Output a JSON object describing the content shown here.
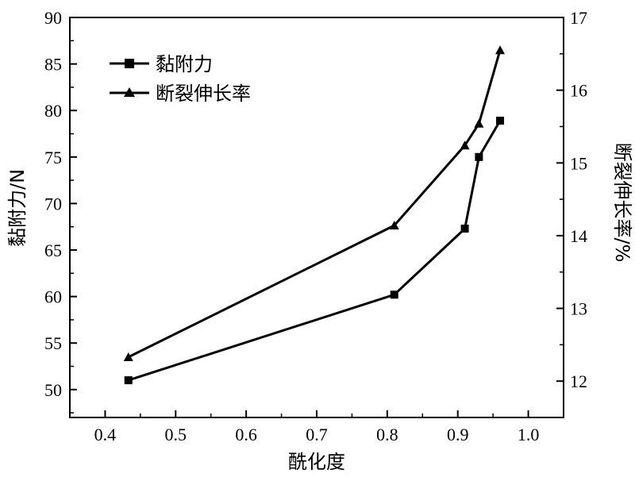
{
  "chart_data": {
    "type": "line",
    "xlabel": "酰化度",
    "ylabel_left": "黏附力/N",
    "ylabel_right": "断裂伸长率/%",
    "xlim": [
      0.35,
      1.05
    ],
    "ylim_left": [
      47,
      90
    ],
    "ylim_right": [
      11.5,
      17
    ],
    "x_ticks": [
      "0.4",
      "0.5",
      "0.6",
      "0.7",
      "0.8",
      "0.9",
      "1.0"
    ],
    "y_left_ticks": [
      "50",
      "55",
      "60",
      "65",
      "70",
      "75",
      "80",
      "85",
      "90"
    ],
    "y_right_ticks": [
      "12",
      "13",
      "14",
      "15",
      "16",
      "17"
    ],
    "legend_position": "top-left",
    "grid": false,
    "series": [
      {
        "name": "黏附力",
        "axis": "left",
        "marker": "square",
        "x": [
          0.433,
          0.81,
          0.91,
          0.93,
          0.96
        ],
        "y": [
          51.0,
          60.2,
          67.3,
          75.0,
          78.9
        ]
      },
      {
        "name": "断裂伸长率",
        "axis": "right",
        "marker": "triangle",
        "x": [
          0.433,
          0.81,
          0.91,
          0.93,
          0.96
        ],
        "y": [
          12.33,
          14.14,
          15.24,
          15.54,
          16.55
        ]
      }
    ]
  }
}
